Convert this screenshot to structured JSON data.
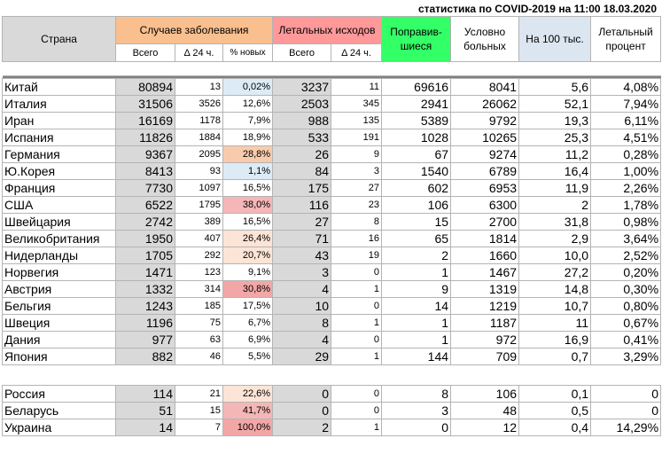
{
  "title": "статистика по COVID-2019 на 11:00 18.03.2020",
  "headers": {
    "country": "Страна",
    "cases": "Случаев заболевания",
    "deaths": "Летальных исходов",
    "recovered": "Поправив-шиеся",
    "active": "Условно больных",
    "per100k": "На 100 тыс.",
    "lethal_pct": "Летальный процент",
    "total": "Всего",
    "delta24": "Δ 24 ч.",
    "pct_new": "% новых"
  },
  "rows_main": [
    {
      "country": "Китай",
      "cases": "80894",
      "cases_d": "13",
      "pct_new": "0,02%",
      "deaths": "3237",
      "deaths_d": "11",
      "recovered": "69616",
      "active": "8041",
      "per100k": "5,6",
      "lethal": "4,08%"
    },
    {
      "country": "Италия",
      "cases": "31506",
      "cases_d": "3526",
      "pct_new": "12,6%",
      "deaths": "2503",
      "deaths_d": "345",
      "recovered": "2941",
      "active": "26062",
      "per100k": "52,1",
      "lethal": "7,94%"
    },
    {
      "country": "Иран",
      "cases": "16169",
      "cases_d": "1178",
      "pct_new": "7,9%",
      "deaths": "988",
      "deaths_d": "135",
      "recovered": "5389",
      "active": "9792",
      "per100k": "19,3",
      "lethal": "6,11%"
    },
    {
      "country": "Испания",
      "cases": "11826",
      "cases_d": "1884",
      "pct_new": "18,9%",
      "deaths": "533",
      "deaths_d": "191",
      "recovered": "1028",
      "active": "10265",
      "per100k": "25,3",
      "lethal": "4,51%"
    },
    {
      "country": "Германия",
      "cases": "9367",
      "cases_d": "2095",
      "pct_new": "28,8%",
      "deaths": "26",
      "deaths_d": "9",
      "recovered": "67",
      "active": "9274",
      "per100k": "11,2",
      "lethal": "0,28%"
    },
    {
      "country": "Ю.Корея",
      "cases": "8413",
      "cases_d": "93",
      "pct_new": "1,1%",
      "deaths": "84",
      "deaths_d": "3",
      "recovered": "1540",
      "active": "6789",
      "per100k": "16,4",
      "lethal": "1,00%"
    },
    {
      "country": "Франция",
      "cases": "7730",
      "cases_d": "1097",
      "pct_new": "16,5%",
      "deaths": "175",
      "deaths_d": "27",
      "recovered": "602",
      "active": "6953",
      "per100k": "11,9",
      "lethal": "2,26%"
    },
    {
      "country": "США",
      "cases": "6522",
      "cases_d": "1795",
      "pct_new": "38,0%",
      "deaths": "116",
      "deaths_d": "23",
      "recovered": "106",
      "active": "6300",
      "per100k": "2",
      "lethal": "1,78%"
    },
    {
      "country": "Швейцария",
      "cases": "2742",
      "cases_d": "389",
      "pct_new": "16,5%",
      "deaths": "27",
      "deaths_d": "8",
      "recovered": "15",
      "active": "2700",
      "per100k": "31,8",
      "lethal": "0,98%"
    },
    {
      "country": "Великобритания",
      "cases": "1950",
      "cases_d": "407",
      "pct_new": "26,4%",
      "deaths": "71",
      "deaths_d": "16",
      "recovered": "65",
      "active": "1814",
      "per100k": "2,9",
      "lethal": "3,64%"
    },
    {
      "country": "Нидерланды",
      "cases": "1705",
      "cases_d": "292",
      "pct_new": "20,7%",
      "deaths": "43",
      "deaths_d": "19",
      "recovered": "2",
      "active": "1660",
      "per100k": "10,0",
      "lethal": "2,52%"
    },
    {
      "country": "Норвегия",
      "cases": "1471",
      "cases_d": "123",
      "pct_new": "9,1%",
      "deaths": "3",
      "deaths_d": "0",
      "recovered": "1",
      "active": "1467",
      "per100k": "27,2",
      "lethal": "0,20%"
    },
    {
      "country": "Австрия",
      "cases": "1332",
      "cases_d": "314",
      "pct_new": "30,8%",
      "deaths": "4",
      "deaths_d": "1",
      "recovered": "9",
      "active": "1319",
      "per100k": "14,8",
      "lethal": "0,30%"
    },
    {
      "country": "Бельгия",
      "cases": "1243",
      "cases_d": "185",
      "pct_new": "17,5%",
      "deaths": "10",
      "deaths_d": "0",
      "recovered": "14",
      "active": "1219",
      "per100k": "10,7",
      "lethal": "0,80%"
    },
    {
      "country": "Швеция",
      "cases": "1196",
      "cases_d": "75",
      "pct_new": "6,7%",
      "deaths": "8",
      "deaths_d": "1",
      "recovered": "1",
      "active": "1187",
      "per100k": "11",
      "lethal": "0,67%"
    },
    {
      "country": "Дания",
      "cases": "977",
      "cases_d": "63",
      "pct_new": "6,9%",
      "deaths": "4",
      "deaths_d": "0",
      "recovered": "1",
      "active": "972",
      "per100k": "16,9",
      "lethal": "0,41%"
    },
    {
      "country": "Япония",
      "cases": "882",
      "cases_d": "46",
      "pct_new": "5,5%",
      "deaths": "29",
      "deaths_d": "1",
      "recovered": "144",
      "active": "709",
      "per100k": "0,7",
      "lethal": "3,29%"
    }
  ],
  "rows_local": [
    {
      "country": "Россия",
      "cases": "114",
      "cases_d": "21",
      "pct_new": "22,6%",
      "deaths": "0",
      "deaths_d": "0",
      "recovered": "8",
      "active": "106",
      "per100k": "0,1",
      "lethal": "0"
    },
    {
      "country": "Беларусь",
      "cases": "51",
      "cases_d": "15",
      "pct_new": "41,7%",
      "deaths": "0",
      "deaths_d": "0",
      "recovered": "3",
      "active": "48",
      "per100k": "0,5",
      "lethal": "0"
    },
    {
      "country": "Украина",
      "cases": "14",
      "cases_d": "7",
      "pct_new": "100,0%",
      "deaths": "2",
      "deaths_d": "1",
      "recovered": "0",
      "active": "12",
      "per100k": "0,4",
      "lethal": "14,29%"
    }
  ],
  "pct_new_colors": {
    "main": [
      "#ddebf7",
      "#ffffff",
      "#ffffff",
      "#ffffff",
      "#f8cbad",
      "#ddebf7",
      "#ffffff",
      "#f4b6b6",
      "#ffffff",
      "#fce4d6",
      "#fce4d6",
      "#ffffff",
      "#f2a7a7",
      "#ffffff",
      "#ffffff",
      "#ffffff",
      "#ffffff"
    ],
    "local": [
      "#fce4d6",
      "#f4b6b6",
      "#f2a7a7"
    ]
  },
  "colors": {
    "country_header": "#d9d9d9",
    "cases_header": "#fabf8f",
    "deaths_header": "#ff9999",
    "recovered_header": "#33ff66",
    "per100k_header": "#dce6f1",
    "data_gray": "#d9d9d9"
  }
}
